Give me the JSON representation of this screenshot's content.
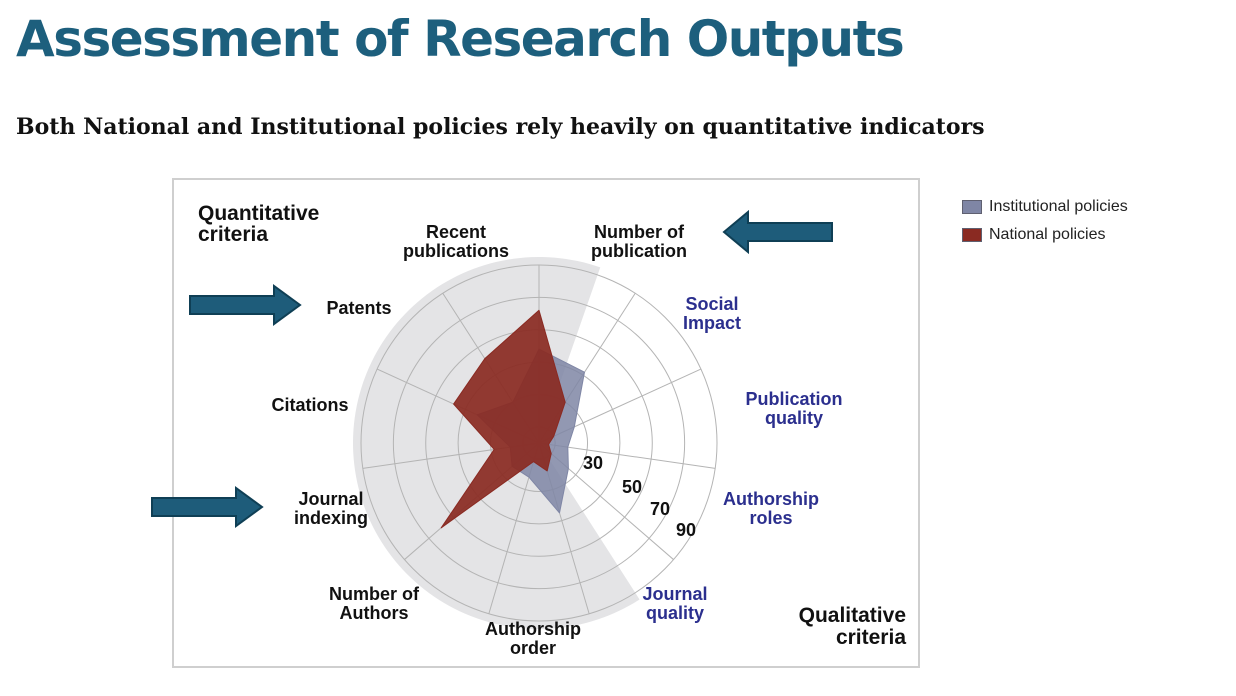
{
  "title": "Assessment of Research Outputs",
  "subtitle": "Both National and Institutional policies rely heavily on quantitative indicators",
  "colors": {
    "title": "#1d5f7d",
    "arrow": "#1e5c7a",
    "arrow_outline": "#0f3f55",
    "quantitative_text": "#111111",
    "qualitative_text": "#2b2f8e",
    "institutional": "#7f86a5",
    "national": "#8a2a22",
    "quantitative_sector": "#e4e4e6",
    "grid": "#b4b4b4"
  },
  "chart_data": {
    "type": "radar",
    "title": "",
    "group_labels": {
      "quantitative": [
        "Quantitative",
        "criteria"
      ],
      "qualitative": [
        "Qualitative",
        "criteria"
      ]
    },
    "axes": [
      {
        "name": "number-of-publication",
        "label": [
          "Number of",
          "publication"
        ],
        "group": "quantitative"
      },
      {
        "name": "social-impact",
        "label": [
          "Social",
          "Impact"
        ],
        "group": "qualitative"
      },
      {
        "name": "publication-quality",
        "label": [
          "Publication",
          "quality"
        ],
        "group": "qualitative"
      },
      {
        "name": "authorship-roles",
        "label": [
          "Authorship",
          "roles"
        ],
        "group": "qualitative"
      },
      {
        "name": "journal-quality",
        "label": [
          "Journal",
          "quality"
        ],
        "group": "qualitative"
      },
      {
        "name": "authorship-order",
        "label": [
          "Authorship",
          "order"
        ],
        "group": "quantitative"
      },
      {
        "name": "number-of-authors",
        "label": [
          "Number of",
          "Authors"
        ],
        "group": "quantitative"
      },
      {
        "name": "journal-indexing",
        "label": [
          "Journal",
          "indexing"
        ],
        "group": "quantitative"
      },
      {
        "name": "citations",
        "label": [
          "Citations"
        ],
        "group": "quantitative"
      },
      {
        "name": "patents",
        "label": [
          "Patents"
        ],
        "group": "quantitative"
      },
      {
        "name": "recent-publications",
        "label": [
          "Recent",
          "publications"
        ],
        "group": "quantitative"
      }
    ],
    "rings": [
      10,
      30,
      50,
      70,
      90,
      110
    ],
    "tick_labels": [
      "30",
      "50",
      "70",
      "90"
    ],
    "rmax": 110,
    "series": [
      {
        "name": "Institutional policies",
        "color": "#7f86a5",
        "values": [
          58,
          52,
          24,
          18,
          24,
          45,
          22,
          22,
          18,
          42,
          30
        ]
      },
      {
        "name": "National policies",
        "color": "#8a2a22",
        "values": [
          82,
          30,
          10,
          6,
          10,
          18,
          12,
          80,
          28,
          58,
          62
        ]
      }
    ],
    "legend_position": "right",
    "grid": true
  },
  "arrows": [
    {
      "name": "arrow-number-of-publication",
      "direction": "left"
    },
    {
      "name": "arrow-patents",
      "direction": "right"
    },
    {
      "name": "arrow-journal-indexing",
      "direction": "right"
    }
  ]
}
